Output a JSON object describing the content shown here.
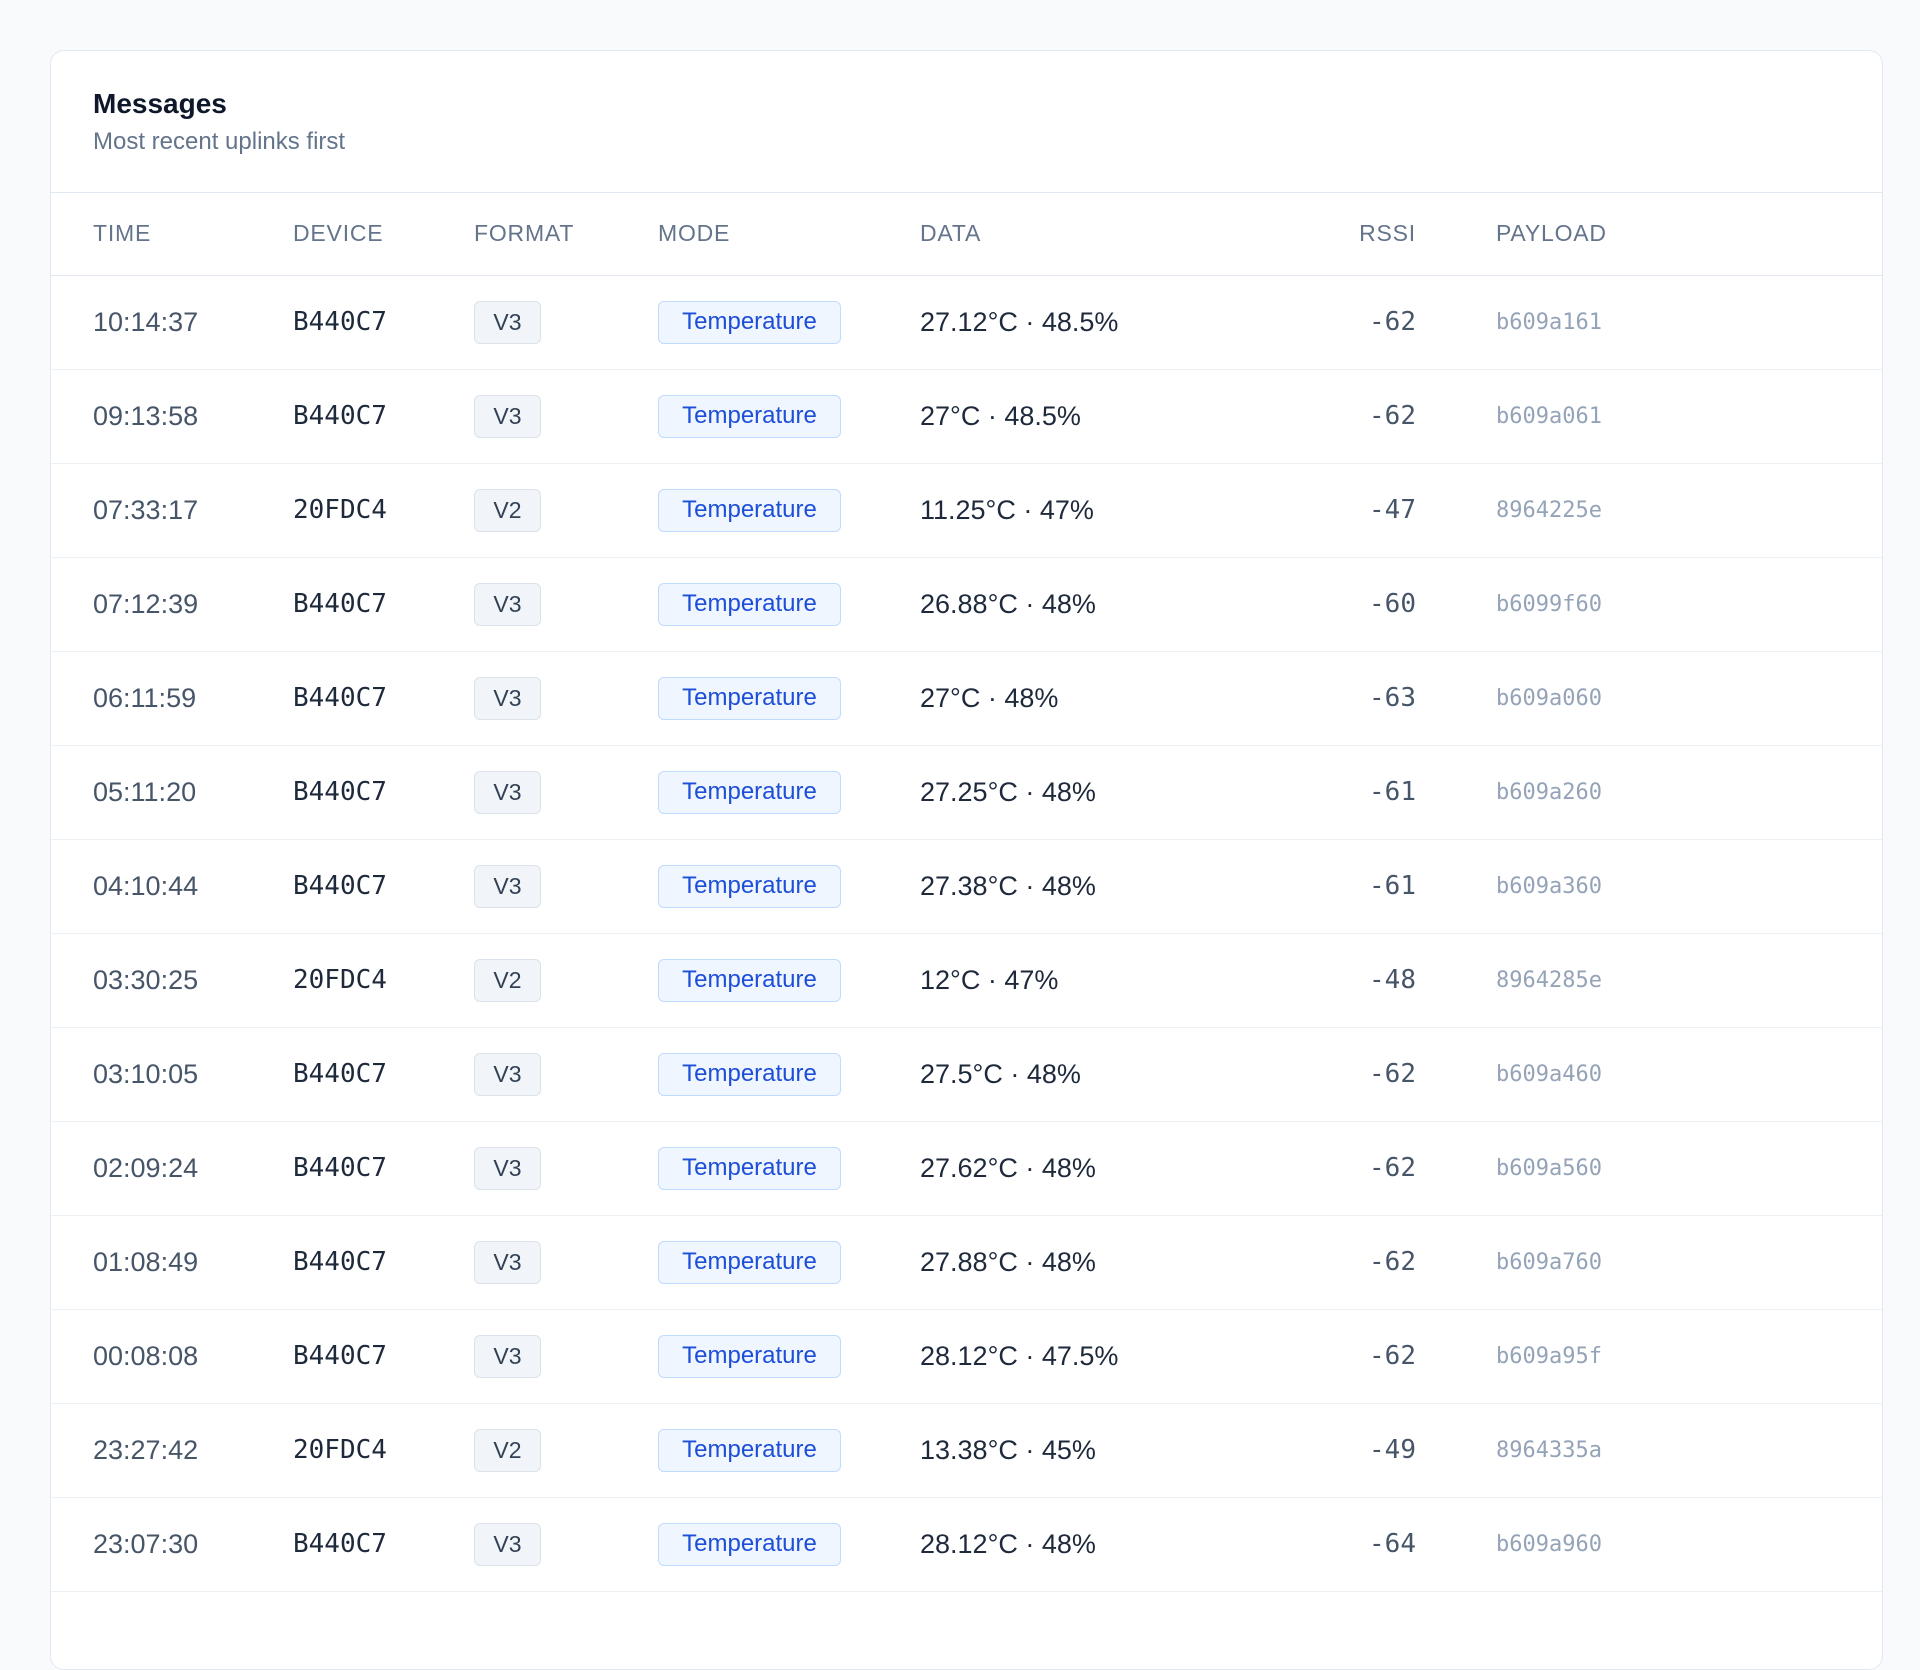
{
  "header": {
    "title": "Messages",
    "subtitle": "Most recent uplinks first"
  },
  "columns": {
    "time": "TIME",
    "device": "DEVICE",
    "format": "FORMAT",
    "mode": "MODE",
    "data": "DATA",
    "rssi": "RSSI",
    "payload": "PAYLOAD"
  },
  "rows": [
    {
      "time": "10:14:37",
      "device": "B440C7",
      "format": "V3",
      "mode": "Temperature",
      "data": "27.12°C · 48.5%",
      "rssi": "-62",
      "payload": "b609a161"
    },
    {
      "time": "09:13:58",
      "device": "B440C7",
      "format": "V3",
      "mode": "Temperature",
      "data": "27°C · 48.5%",
      "rssi": "-62",
      "payload": "b609a061"
    },
    {
      "time": "07:33:17",
      "device": "20FDC4",
      "format": "V2",
      "mode": "Temperature",
      "data": "11.25°C · 47%",
      "rssi": "-47",
      "payload": "8964225e"
    },
    {
      "time": "07:12:39",
      "device": "B440C7",
      "format": "V3",
      "mode": "Temperature",
      "data": "26.88°C · 48%",
      "rssi": "-60",
      "payload": "b6099f60"
    },
    {
      "time": "06:11:59",
      "device": "B440C7",
      "format": "V3",
      "mode": "Temperature",
      "data": "27°C · 48%",
      "rssi": "-63",
      "payload": "b609a060"
    },
    {
      "time": "05:11:20",
      "device": "B440C7",
      "format": "V3",
      "mode": "Temperature",
      "data": "27.25°C · 48%",
      "rssi": "-61",
      "payload": "b609a260"
    },
    {
      "time": "04:10:44",
      "device": "B440C7",
      "format": "V3",
      "mode": "Temperature",
      "data": "27.38°C · 48%",
      "rssi": "-61",
      "payload": "b609a360"
    },
    {
      "time": "03:30:25",
      "device": "20FDC4",
      "format": "V2",
      "mode": "Temperature",
      "data": "12°C · 47%",
      "rssi": "-48",
      "payload": "8964285e"
    },
    {
      "time": "03:10:05",
      "device": "B440C7",
      "format": "V3",
      "mode": "Temperature",
      "data": "27.5°C · 48%",
      "rssi": "-62",
      "payload": "b609a460"
    },
    {
      "time": "02:09:24",
      "device": "B440C7",
      "format": "V3",
      "mode": "Temperature",
      "data": "27.62°C · 48%",
      "rssi": "-62",
      "payload": "b609a560"
    },
    {
      "time": "01:08:49",
      "device": "B440C7",
      "format": "V3",
      "mode": "Temperature",
      "data": "27.88°C · 48%",
      "rssi": "-62",
      "payload": "b609a760"
    },
    {
      "time": "00:08:08",
      "device": "B440C7",
      "format": "V3",
      "mode": "Temperature",
      "data": "28.12°C · 47.5%",
      "rssi": "-62",
      "payload": "b609a95f"
    },
    {
      "time": "23:27:42",
      "device": "20FDC4",
      "format": "V2",
      "mode": "Temperature",
      "data": "13.38°C · 45%",
      "rssi": "-49",
      "payload": "8964335a"
    },
    {
      "time": "23:07:30",
      "device": "B440C7",
      "format": "V3",
      "mode": "Temperature",
      "data": "28.12°C · 48%",
      "rssi": "-64",
      "payload": "b609a960"
    },
    {
      "time": "",
      "device": "",
      "format": "",
      "mode": "",
      "data": "",
      "rssi": "",
      "payload": ""
    }
  ]
}
